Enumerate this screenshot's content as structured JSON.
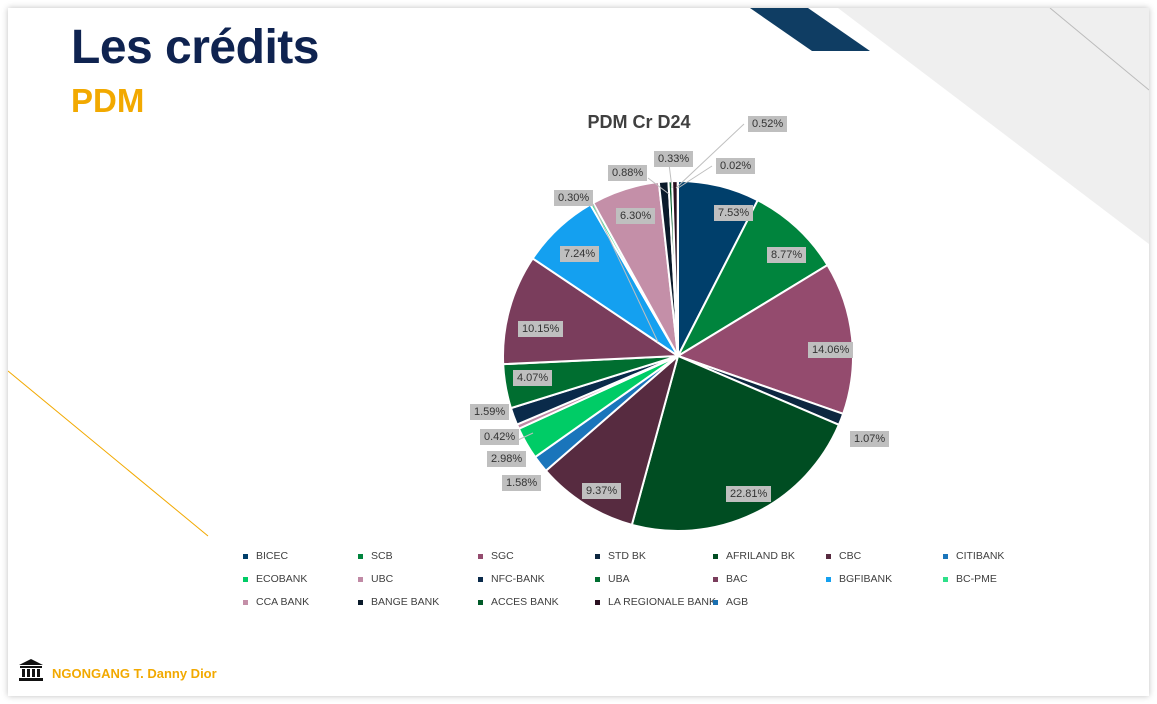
{
  "slide": {
    "title": "Les crédits",
    "subtitle": "PDM",
    "footer": "NGONGANG T. Danny Dior"
  },
  "chart_data": {
    "type": "pie",
    "title": "PDM Cr D24",
    "legend_position": "bottom",
    "slices": [
      {
        "name": "BICEC",
        "value": 7.53,
        "label": "7.53%",
        "color": "#003f6b"
      },
      {
        "name": "SCB",
        "value": 8.77,
        "label": "8.77%",
        "color": "#00843d"
      },
      {
        "name": "SGC",
        "value": 14.06,
        "label": "14.06%",
        "color": "#944b6e"
      },
      {
        "name": "STD BK",
        "value": 1.07,
        "label": "1.07%",
        "color": "#0d2740"
      },
      {
        "name": "AFRILAND BK",
        "value": 22.81,
        "label": "22.81%",
        "color": "#004d22"
      },
      {
        "name": "CBC",
        "value": 9.37,
        "label": "9.37%",
        "color": "#572b40"
      },
      {
        "name": "CITIBANK",
        "value": 1.58,
        "label": "1.58%",
        "color": "#1a75bb"
      },
      {
        "name": "ECOBANK",
        "value": 2.98,
        "label": "2.98%",
        "color": "#00cc66"
      },
      {
        "name": "UBC",
        "value": 0.42,
        "label": "0.42%",
        "color": "#c08aa5"
      },
      {
        "name": "NFC-BANK",
        "value": 1.59,
        "label": "1.59%",
        "color": "#0a2a4a"
      },
      {
        "name": "UBA",
        "value": 4.07,
        "label": "4.07%",
        "color": "#006e30"
      },
      {
        "name": "BAC",
        "value": 10.15,
        "label": "10.15%",
        "color": "#7a3d5c"
      },
      {
        "name": "BGFIBANK",
        "value": 7.24,
        "label": "7.24%",
        "color": "#14a0f0"
      },
      {
        "name": "BC-PME",
        "value": 0.3,
        "label": "0.30%",
        "color": "#2ee08a"
      },
      {
        "name": "CCA BANK",
        "value": 6.3,
        "label": "6.30%",
        "color": "#c48fa8"
      },
      {
        "name": "BANGE BANK",
        "value": 0.88,
        "label": "0.88%",
        "color": "#0a1a2a"
      },
      {
        "name": "ACCES BANK",
        "value": 0.33,
        "label": "0.33%",
        "color": "#005a28"
      },
      {
        "name": "LA REGIONALE BANK",
        "value": 0.52,
        "label": "0.52%",
        "color": "#2a1020"
      },
      {
        "name": "AGB",
        "value": 0.02,
        "label": "0.02%",
        "color": "#1a6fb0"
      }
    ]
  }
}
